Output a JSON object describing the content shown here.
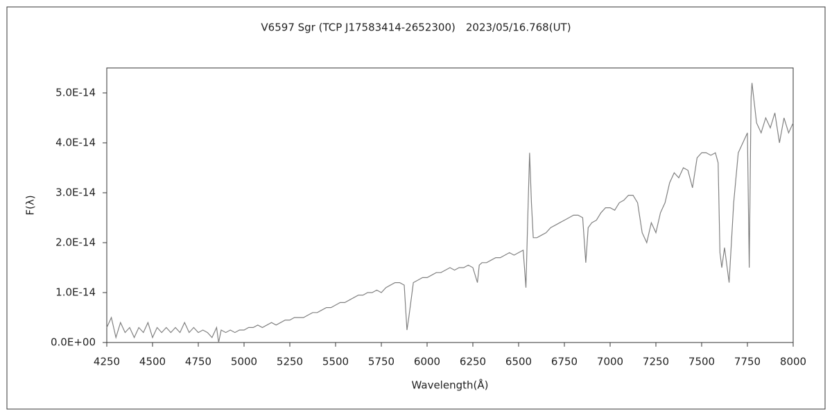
{
  "chart_data": {
    "type": "line",
    "title": "V6597 Sgr (TCP J17583414-2652300)　2023/05/16.768(UT)",
    "x_label": "Wavelength(Å)",
    "y_label": "F(λ)",
    "color": "#808080",
    "grid": false,
    "xlim": [
      4250,
      8000
    ],
    "xticks": [
      4250,
      4500,
      4750,
      5000,
      5250,
      5500,
      5750,
      6000,
      6250,
      6500,
      6750,
      7000,
      7250,
      7500,
      7750,
      8000
    ],
    "ylim": [
      0,
      5.5e-14
    ],
    "yticks": [
      {
        "value": 0,
        "label": "0.0E+00"
      },
      {
        "value": 1e-14,
        "label": "1.0E-14"
      },
      {
        "value": 2e-14,
        "label": "2.0E-14"
      },
      {
        "value": 3e-14,
        "label": "3.0E-14"
      },
      {
        "value": 4e-14,
        "label": "4.0E-14"
      },
      {
        "value": 5e-14,
        "label": "5.0E-14"
      }
    ],
    "x": [
      4250,
      4275,
      4300,
      4325,
      4350,
      4375,
      4400,
      4425,
      4450,
      4475,
      4500,
      4525,
      4550,
      4575,
      4600,
      4625,
      4650,
      4675,
      4700,
      4725,
      4750,
      4775,
      4800,
      4825,
      4850,
      4861,
      4875,
      4900,
      4925,
      4950,
      4975,
      5000,
      5025,
      5050,
      5075,
      5100,
      5125,
      5150,
      5175,
      5200,
      5225,
      5250,
      5275,
      5300,
      5325,
      5350,
      5375,
      5400,
      5425,
      5450,
      5475,
      5500,
      5525,
      5550,
      5575,
      5600,
      5625,
      5650,
      5675,
      5700,
      5725,
      5750,
      5775,
      5800,
      5825,
      5850,
      5875,
      5890,
      5900,
      5925,
      5950,
      5975,
      6000,
      6025,
      6050,
      6075,
      6100,
      6125,
      6150,
      6175,
      6200,
      6225,
      6250,
      6275,
      6285,
      6300,
      6325,
      6350,
      6375,
      6400,
      6425,
      6450,
      6475,
      6500,
      6525,
      6540,
      6550,
      6560,
      6570,
      6580,
      6600,
      6625,
      6650,
      6675,
      6700,
      6725,
      6750,
      6775,
      6800,
      6825,
      6850,
      6867,
      6880,
      6900,
      6925,
      6950,
      6975,
      7000,
      7025,
      7050,
      7075,
      7100,
      7125,
      7150,
      7175,
      7200,
      7225,
      7250,
      7275,
      7300,
      7325,
      7350,
      7375,
      7400,
      7425,
      7450,
      7475,
      7500,
      7525,
      7550,
      7575,
      7590,
      7600,
      7610,
      7625,
      7650,
      7675,
      7700,
      7725,
      7750,
      7760,
      7770,
      7775,
      7800,
      7825,
      7850,
      7875,
      7900,
      7925,
      7950,
      7975,
      8000
    ],
    "values": [
      3e-15,
      5e-15,
      1e-15,
      4e-15,
      2e-15,
      3e-15,
      1e-15,
      3e-15,
      2e-15,
      4e-15,
      1e-15,
      3e-15,
      2e-15,
      3e-15,
      2e-15,
      3e-15,
      2e-15,
      4e-15,
      2e-15,
      3e-15,
      2e-15,
      2.5e-15,
      2e-15,
      1e-15,
      3e-15,
      0,
      2.5e-15,
      2e-15,
      2.5e-15,
      2e-15,
      2.5e-15,
      2.5e-15,
      3e-15,
      3e-15,
      3.5e-15,
      3e-15,
      3.5e-15,
      4e-15,
      3.5e-15,
      4e-15,
      4.5e-15,
      4.5e-15,
      5e-15,
      5e-15,
      5e-15,
      5.5e-15,
      6e-15,
      6e-15,
      6.5e-15,
      7e-15,
      7e-15,
      7.5e-15,
      8e-15,
      8e-15,
      8.5e-15,
      9e-15,
      9.5e-15,
      9.5e-15,
      1e-14,
      1e-14,
      1.05e-14,
      1e-14,
      1.1e-14,
      1.15e-14,
      1.2e-14,
      1.2e-14,
      1.15e-14,
      2.5e-15,
      5e-15,
      1.2e-14,
      1.25e-14,
      1.3e-14,
      1.3e-14,
      1.35e-14,
      1.4e-14,
      1.4e-14,
      1.45e-14,
      1.5e-14,
      1.45e-14,
      1.5e-14,
      1.5e-14,
      1.55e-14,
      1.5e-14,
      1.2e-14,
      1.55e-14,
      1.6e-14,
      1.6e-14,
      1.65e-14,
      1.7e-14,
      1.7e-14,
      1.75e-14,
      1.8e-14,
      1.75e-14,
      1.8e-14,
      1.85e-14,
      1.1e-14,
      2.5e-14,
      3.8e-14,
      2.8e-14,
      2.1e-14,
      2.1e-14,
      2.15e-14,
      2.2e-14,
      2.3e-14,
      2.35e-14,
      2.4e-14,
      2.45e-14,
      2.5e-14,
      2.55e-14,
      2.55e-14,
      2.5e-14,
      1.6e-14,
      2.3e-14,
      2.4e-14,
      2.45e-14,
      2.6e-14,
      2.7e-14,
      2.7e-14,
      2.65e-14,
      2.8e-14,
      2.85e-14,
      2.95e-14,
      2.95e-14,
      2.8e-14,
      2.2e-14,
      2e-14,
      2.4e-14,
      2.2e-14,
      2.6e-14,
      2.8e-14,
      3.2e-14,
      3.4e-14,
      3.3e-14,
      3.5e-14,
      3.45e-14,
      3.1e-14,
      3.7e-14,
      3.8e-14,
      3.8e-14,
      3.75e-14,
      3.8e-14,
      3.6e-14,
      1.8e-14,
      1.5e-14,
      1.9e-14,
      1.2e-14,
      2.8e-14,
      3.8e-14,
      4e-14,
      4.2e-14,
      1.5e-14,
      4.9e-14,
      5.2e-14,
      4.4e-14,
      4.2e-14,
      4.5e-14,
      4.3e-14,
      4.6e-14,
      4e-14,
      4.5e-14,
      4.2e-14,
      4.4e-14
    ]
  }
}
